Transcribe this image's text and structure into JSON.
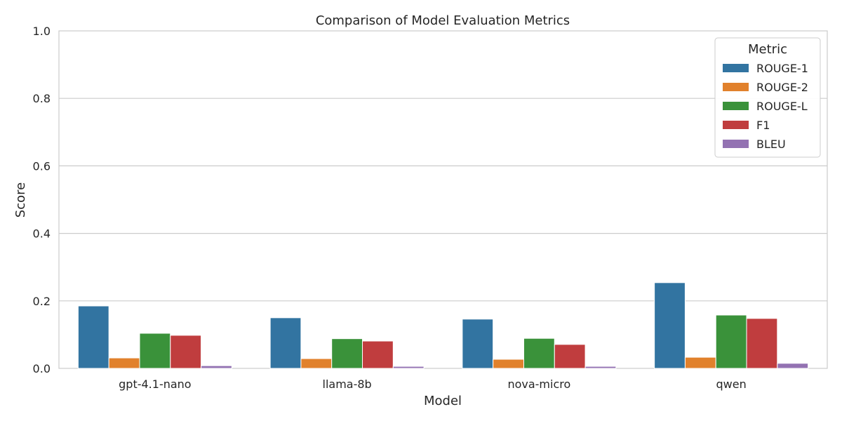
{
  "chart_data": {
    "type": "bar",
    "title": "Comparison of Model Evaluation Metrics",
    "xlabel": "Model",
    "ylabel": "Score",
    "ylim": [
      0,
      1
    ],
    "yticks": [
      "0.0",
      "0.2",
      "0.4",
      "0.6",
      "0.8",
      "1.0"
    ],
    "grid": "on (horizontal)",
    "legend_placement": "top-right",
    "legend_title": "Metric",
    "categories": [
      "gpt-4.1-nano",
      "llama-8b",
      "nova-micro",
      "qwen"
    ],
    "series": [
      {
        "name": "ROUGE-1",
        "color": "#3274a1",
        "values": [
          0.185,
          0.15,
          0.146,
          0.254
        ]
      },
      {
        "name": "ROUGE-2",
        "color": "#e1812c",
        "values": [
          0.031,
          0.029,
          0.027,
          0.033
        ]
      },
      {
        "name": "ROUGE-L",
        "color": "#3a923a",
        "values": [
          0.104,
          0.088,
          0.089,
          0.158
        ]
      },
      {
        "name": "F1",
        "color": "#c03d3e",
        "values": [
          0.098,
          0.081,
          0.071,
          0.148
        ]
      },
      {
        "name": "BLEU",
        "color": "#9372b2",
        "values": [
          0.008,
          0.006,
          0.006,
          0.015
        ]
      }
    ]
  }
}
